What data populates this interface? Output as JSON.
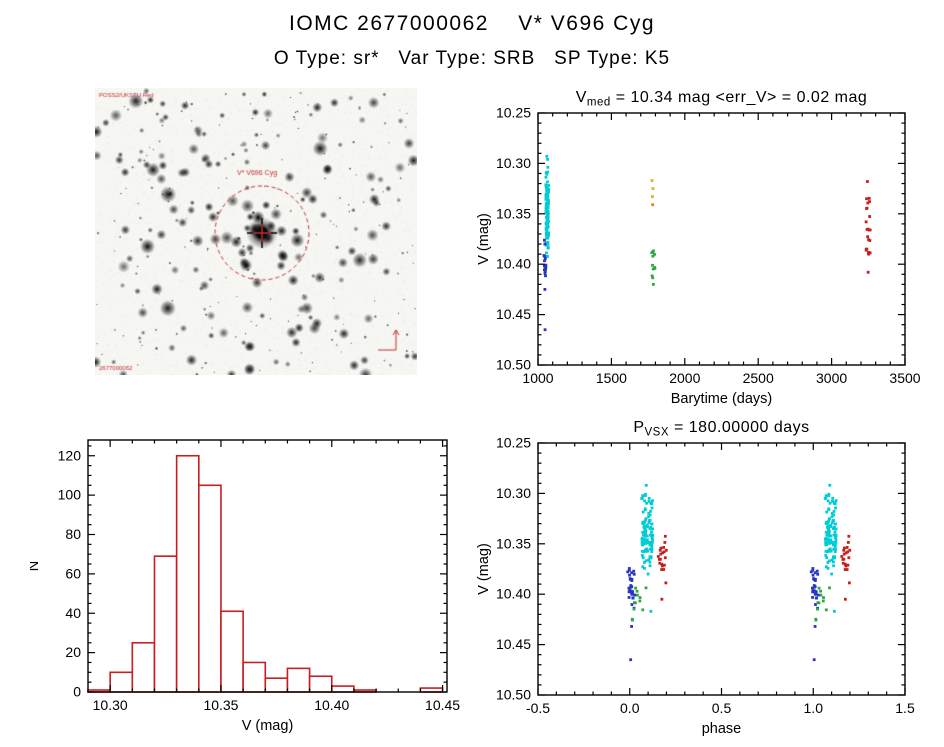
{
  "header": {
    "title": "IOMC 2677000062    V* V696 Cyg",
    "subtitle": "O Type: sr*   Var Type: SRB   SP Type: K5"
  },
  "finder": {
    "target_label": "V* V696 Cyg",
    "top_left_label": "POSS2/UKSTU Red",
    "bottom_left_label": "2677000062",
    "overlay_color": "#c43030"
  },
  "chart_data": [
    {
      "id": "lightcurve",
      "type": "scatter",
      "title_parts": {
        "pre": "V",
        "sub": "med",
        "post": " = 10.34 mag <err_V> = 0.02 mag"
      },
      "xlabel": "Barytime (days)",
      "ylabel": "V (mag)",
      "x_left": 1000,
      "x_right": 3500,
      "y_top": 10.25,
      "y_bottom": 10.5,
      "xticks": [
        1000,
        1500,
        2000,
        2500,
        3000,
        3500
      ],
      "xtick_labels": [
        "1000",
        "1500",
        "2000",
        "2500",
        "3000",
        "3500"
      ],
      "yticks": [
        10.25,
        10.3,
        10.35,
        10.4,
        10.45,
        10.5
      ],
      "ytick_labels": [
        "10.25",
        "10.30",
        "10.35",
        "10.40",
        "10.45",
        "10.50"
      ],
      "x_minor": 100,
      "y_minor": 0.01,
      "ylabel_offset": 50,
      "series": [
        {
          "name": "epoch1-cyan",
          "color": "#00ccd6",
          "clusters": [
            {
              "x": [
                1053,
                1073
              ],
              "y": [
                10.298,
                10.402
              ],
              "n": 115,
              "dist": "tri",
              "seed": 101
            }
          ],
          "points": [
            [
              1060,
              10.293
            ],
            [
              1065,
              10.296
            ]
          ]
        },
        {
          "name": "epoch1-blue",
          "color": "#2a35c0",
          "clusters": [
            {
              "x": [
                1039,
                1055
              ],
              "y": [
                10.374,
                10.412
              ],
              "n": 16,
              "dist": "uniform",
              "seed": 102
            }
          ],
          "points": [
            [
              1047,
              10.425
            ],
            [
              1048,
              10.465
            ]
          ]
        },
        {
          "name": "epoch2-green",
          "color": "#2fa844",
          "clusters": [
            {
              "x": [
                1774,
                1800
              ],
              "y": [
                10.386,
                10.415
              ],
              "n": 11,
              "dist": "uniform",
              "seed": 103
            }
          ],
          "points": [
            [
              1786,
              10.42
            ]
          ]
        },
        {
          "name": "epoch2-yellow",
          "color": "#d4b62a",
          "points": [
            [
              1777,
              10.317
            ],
            [
              1783,
              10.325
            ],
            [
              1779,
              10.333
            ]
          ]
        },
        {
          "name": "epoch2-orange",
          "color": "#e0821e",
          "points": [
            [
              1781,
              10.341
            ]
          ]
        },
        {
          "name": "epoch3-red",
          "color": "#c81e1e",
          "clusters": [
            {
              "x": [
                3235,
                3263
              ],
              "y": [
                10.327,
                10.4
              ],
              "n": 22,
              "dist": "tri",
              "seed": 104
            }
          ],
          "points": [
            [
              3249,
              10.408
            ],
            [
              3244,
              10.318
            ]
          ]
        }
      ]
    },
    {
      "id": "histogram",
      "type": "histogram",
      "xlabel": "V (mag)",
      "ylabel": "N",
      "x_left": 10.29,
      "x_right": 10.452,
      "y_top": 128,
      "y_bottom": 0,
      "xticks": [
        10.3,
        10.35,
        10.4,
        10.45
      ],
      "xtick_labels": [
        "10.30",
        "10.35",
        "10.40",
        "10.45"
      ],
      "yticks": [
        0,
        20,
        40,
        60,
        80,
        100,
        120
      ],
      "ytick_labels": [
        "0",
        "20",
        "40",
        "60",
        "80",
        "100",
        "120"
      ],
      "x_minor": 0.01,
      "y_minor": 5,
      "ylabel_offset": 50,
      "color": "#c81e1e",
      "bin_width": 0.01,
      "bin_centers": [
        10.295,
        10.305,
        10.315,
        10.325,
        10.335,
        10.345,
        10.355,
        10.365,
        10.375,
        10.385,
        10.395,
        10.405,
        10.415,
        10.425,
        10.435,
        10.445
      ],
      "counts": [
        1,
        10,
        25,
        69,
        120,
        105,
        41,
        15,
        7,
        12,
        8,
        3,
        1,
        0,
        0,
        2
      ]
    },
    {
      "id": "phase",
      "type": "scatter",
      "title_parts": {
        "pre": "P",
        "sub": "VSX",
        "post": " = 180.00000 days"
      },
      "xlabel": "phase",
      "ylabel": "V (mag)",
      "x_left": -0.5,
      "x_right": 1.5,
      "y_top": 10.25,
      "y_bottom": 10.5,
      "xticks": [
        -0.5,
        0.0,
        0.5,
        1.0,
        1.5
      ],
      "xtick_labels": [
        "-0.5",
        "0.0",
        "0.5",
        "1.0",
        "1.5"
      ],
      "yticks": [
        10.25,
        10.3,
        10.35,
        10.4,
        10.45,
        10.5
      ],
      "ytick_labels": [
        "10.25",
        "10.30",
        "10.35",
        "10.40",
        "10.45",
        "10.50"
      ],
      "x_minor": 0.1,
      "y_minor": 0.01,
      "ylabel_offset": 50,
      "series": [
        {
          "name": "phase-blue",
          "color": "#2a35c0",
          "repeat_dx": 1.0,
          "clusters": [
            {
              "x": [
                -0.012,
                0.028
              ],
              "y": [
                10.372,
                10.42
              ],
              "n": 30,
              "dist": "tri",
              "seed": 201
            }
          ],
          "points": [
            [
              0.005,
              10.465
            ],
            [
              0.01,
              10.432
            ]
          ]
        },
        {
          "name": "phase-green",
          "color": "#2fa844",
          "repeat_dx": 1.0,
          "clusters": [
            {
              "x": [
                0.0,
                0.115
              ],
              "y": [
                10.39,
                10.427
              ],
              "n": 12,
              "dist": "uniform",
              "seed": 202
            }
          ]
        },
        {
          "name": "phase-cyan",
          "color": "#00ccd6",
          "repeat_dx": 1.0,
          "clusters": [
            {
              "x": [
                0.065,
                0.125
              ],
              "y": [
                10.297,
                10.376
              ],
              "n": 105,
              "dist": "tri",
              "seed": 203
            }
          ],
          "points": [
            [
              0.09,
              10.292
            ],
            [
              0.1,
              10.38
            ],
            [
              0.115,
              10.417
            ]
          ]
        },
        {
          "name": "phase-red",
          "color": "#c81e1e",
          "repeat_dx": 1.0,
          "clusters": [
            {
              "x": [
                0.155,
                0.205
              ],
              "y": [
                10.327,
                10.398
              ],
              "n": 20,
              "dist": "tri",
              "seed": 204
            }
          ],
          "points": [
            [
              0.175,
              10.405
            ]
          ]
        }
      ]
    }
  ]
}
